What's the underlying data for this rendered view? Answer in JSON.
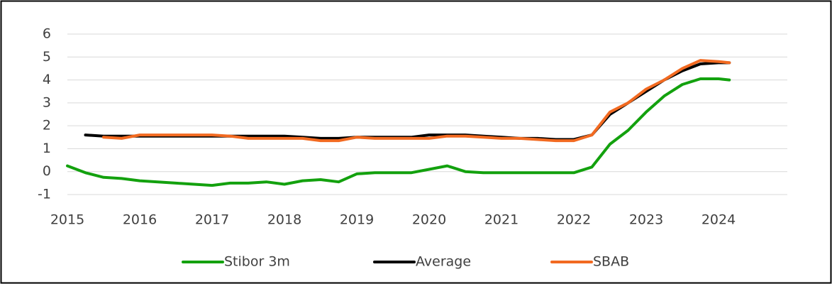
{
  "chart_data": {
    "type": "line",
    "x": [
      2015,
      2015.25,
      2015.5,
      2015.75,
      2016,
      2016.25,
      2016.5,
      2016.75,
      2017,
      2017.25,
      2017.5,
      2017.75,
      2018,
      2018.25,
      2018.5,
      2018.75,
      2019,
      2019.25,
      2019.5,
      2019.75,
      2020,
      2020.25,
      2020.5,
      2020.75,
      2021,
      2021.25,
      2021.5,
      2021.75,
      2022,
      2022.25,
      2022.5,
      2022.75,
      2023,
      2023.25,
      2023.5,
      2023.75,
      2024,
      2024.15
    ],
    "series": [
      {
        "name": "Stibor 3m",
        "color": "#13a10e",
        "values": [
          0.25,
          -0.05,
          -0.25,
          -0.3,
          -0.4,
          -0.45,
          -0.5,
          -0.55,
          -0.6,
          -0.5,
          -0.5,
          -0.45,
          -0.55,
          -0.4,
          -0.35,
          -0.45,
          -0.1,
          -0.05,
          -0.05,
          -0.05,
          0.1,
          0.25,
          0.0,
          -0.05,
          -0.05,
          -0.05,
          -0.05,
          -0.05,
          -0.05,
          0.2,
          1.2,
          1.8,
          2.6,
          3.3,
          3.8,
          4.05,
          4.05,
          4.0
        ]
      },
      {
        "name": "Average",
        "color": "#000000",
        "values": [
          null,
          1.6,
          1.55,
          1.55,
          1.55,
          1.55,
          1.55,
          1.55,
          1.55,
          1.55,
          1.55,
          1.55,
          1.55,
          1.5,
          1.45,
          1.45,
          1.5,
          1.5,
          1.5,
          1.5,
          1.6,
          1.6,
          1.6,
          1.55,
          1.5,
          1.45,
          1.45,
          1.4,
          1.4,
          1.6,
          2.5,
          3.0,
          3.5,
          4.0,
          4.4,
          4.7,
          4.75,
          4.75
        ]
      },
      {
        "name": "SBAB",
        "color": "#f26a21",
        "values": [
          null,
          null,
          1.5,
          1.45,
          1.6,
          1.6,
          1.6,
          1.6,
          1.6,
          1.55,
          1.45,
          1.45,
          1.45,
          1.45,
          1.35,
          1.35,
          1.5,
          1.45,
          1.45,
          1.45,
          1.45,
          1.55,
          1.55,
          1.5,
          1.45,
          1.45,
          1.4,
          1.35,
          1.35,
          1.6,
          2.6,
          3.0,
          3.6,
          4.0,
          4.5,
          4.85,
          4.8,
          4.75
        ]
      }
    ],
    "xlim": [
      2015,
      2025
    ],
    "xticks": [
      2015,
      2016,
      2017,
      2018,
      2019,
      2020,
      2021,
      2022,
      2023,
      2024
    ],
    "ylim": [
      -1,
      6
    ],
    "yticks": [
      -1,
      0,
      1,
      2,
      3,
      4,
      5,
      6
    ],
    "grid": true,
    "legend": "bottom"
  }
}
